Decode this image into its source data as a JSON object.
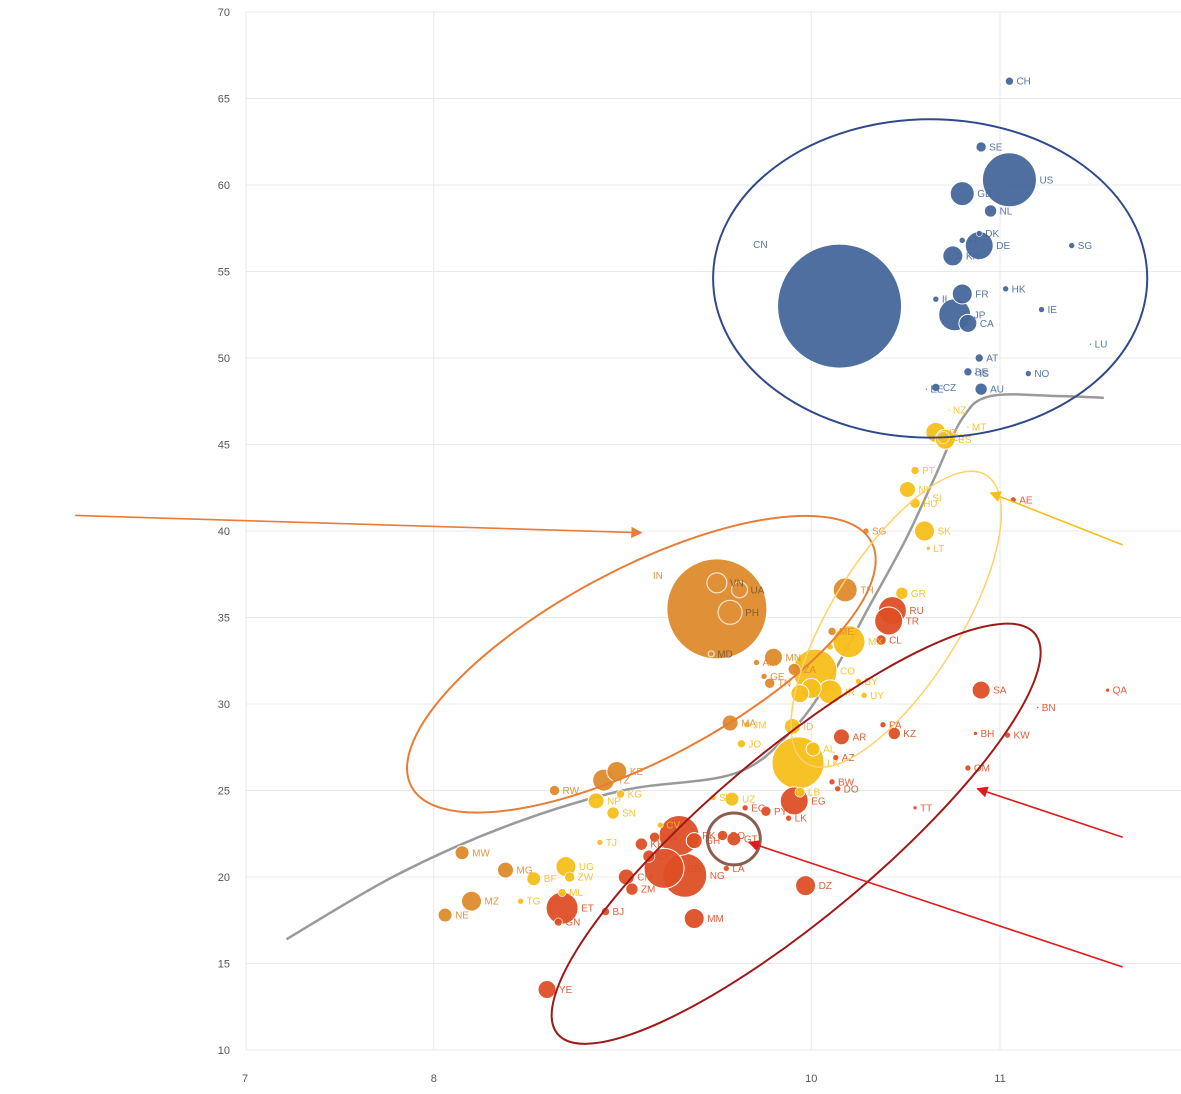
{
  "chart_data": {
    "type": "scatter",
    "title": "",
    "xlabel": "",
    "ylabel": "",
    "xlim": [
      7,
      11.7
    ],
    "ylim": [
      10,
      70
    ],
    "x_ticks": [
      7,
      8,
      10,
      11
    ],
    "x_tick_labels": [
      "7",
      "8",
      "10",
      "11"
    ],
    "y_ticks": [
      10,
      15,
      20,
      25,
      30,
      35,
      40,
      45,
      50,
      55,
      60,
      65,
      70
    ],
    "y_tick_labels": [
      "10",
      "15",
      "20",
      "25",
      "30",
      "35",
      "40",
      "45",
      "50",
      "55",
      "60",
      "65",
      "70"
    ],
    "grid": true,
    "colors": {
      "blue": "#44679a",
      "gold": "#f6bf1a",
      "orange": "#de8a2b",
      "red": "#dd4f26",
      "trend": "#9a9a9a"
    },
    "points": [
      {
        "label": "CH",
        "x": 11.05,
        "y": 66.0,
        "size": 4,
        "group": "blue"
      },
      {
        "label": "SE",
        "x": 10.9,
        "y": 62.2,
        "size": 5,
        "group": "blue"
      },
      {
        "label": "US",
        "x": 11.05,
        "y": 60.3,
        "size": 27,
        "group": "blue"
      },
      {
        "label": "GB",
        "x": 10.8,
        "y": 59.5,
        "size": 12,
        "group": "blue"
      },
      {
        "label": "NL",
        "x": 10.95,
        "y": 58.5,
        "size": 6,
        "group": "blue"
      },
      {
        "label": "FI",
        "x": 10.8,
        "y": 56.8,
        "size": 3,
        "group": "blue"
      },
      {
        "label": "DK",
        "x": 10.89,
        "y": 57.2,
        "size": 3,
        "group": "blue"
      },
      {
        "label": "KR",
        "x": 10.75,
        "y": 55.9,
        "size": 10,
        "group": "blue"
      },
      {
        "label": "DE",
        "x": 10.89,
        "y": 56.5,
        "size": 14,
        "group": "blue"
      },
      {
        "label": "SG",
        "x": 11.38,
        "y": 56.5,
        "size": 3,
        "group": "blue"
      },
      {
        "label": "CN",
        "x": 10.15,
        "y": 53.0,
        "size": 62,
        "group": "blue"
      },
      {
        "label": "FR",
        "x": 10.8,
        "y": 53.7,
        "size": 10,
        "group": "blue"
      },
      {
        "label": "HK",
        "x": 11.03,
        "y": 54.0,
        "size": 3,
        "group": "blue"
      },
      {
        "label": "IL",
        "x": 10.66,
        "y": 53.4,
        "size": 3,
        "group": "blue"
      },
      {
        "label": "IE",
        "x": 11.22,
        "y": 52.8,
        "size": 3,
        "group": "blue"
      },
      {
        "label": "JP",
        "x": 10.76,
        "y": 52.5,
        "size": 16,
        "group": "blue"
      },
      {
        "label": "CA",
        "x": 10.83,
        "y": 52.0,
        "size": 9,
        "group": "blue"
      },
      {
        "label": "LU",
        "x": 11.48,
        "y": 50.8,
        "size": 1,
        "group": "blue"
      },
      {
        "label": "AT",
        "x": 10.89,
        "y": 50.0,
        "size": 4,
        "group": "blue"
      },
      {
        "label": "BE",
        "x": 10.83,
        "y": 49.2,
        "size": 4,
        "group": "blue"
      },
      {
        "label": "IS",
        "x": 10.87,
        "y": 49.1,
        "size": 1,
        "group": "blue"
      },
      {
        "label": "NO",
        "x": 11.15,
        "y": 49.1,
        "size": 3,
        "group": "blue"
      },
      {
        "label": "EE",
        "x": 10.61,
        "y": 48.2,
        "size": 1,
        "group": "blue"
      },
      {
        "label": "CZ",
        "x": 10.66,
        "y": 48.3,
        "size": 4,
        "group": "blue"
      },
      {
        "label": "AU",
        "x": 10.9,
        "y": 48.2,
        "size": 6,
        "group": "blue"
      },
      {
        "label": "NZ",
        "x": 10.73,
        "y": 47.0,
        "size": 1,
        "group": "gold"
      },
      {
        "label": "MT",
        "x": 10.83,
        "y": 46.0,
        "size": 1,
        "group": "gold"
      },
      {
        "label": "IT",
        "x": 10.66,
        "y": 45.7,
        "size": 10,
        "group": "gold"
      },
      {
        "label": "CY",
        "x": 10.7,
        "y": 45.4,
        "size": 6,
        "group": "gold"
      },
      {
        "label": "ES",
        "x": 10.71,
        "y": 45.3,
        "size": 10,
        "group": "gold"
      },
      {
        "label": "PT",
        "x": 10.55,
        "y": 43.5,
        "size": 4,
        "group": "gold"
      },
      {
        "label": "SI",
        "x": 10.62,
        "y": 41.9,
        "size": 1,
        "group": "gold"
      },
      {
        "label": "NY",
        "x": 10.51,
        "y": 42.4,
        "size": 8,
        "group": "gold"
      },
      {
        "label": "HU",
        "x": 10.55,
        "y": 41.6,
        "size": 5,
        "group": "gold"
      },
      {
        "label": "SK",
        "x": 10.6,
        "y": 40.0,
        "size": 10,
        "group": "gold"
      },
      {
        "label": "LT",
        "x": 10.62,
        "y": 39.0,
        "size": 2,
        "group": "gold"
      },
      {
        "label": "AE",
        "x": 11.07,
        "y": 41.8,
        "size": 3,
        "group": "red"
      },
      {
        "label": "SG",
        "x": 10.29,
        "y": 40.0,
        "size": 3,
        "group": "orange"
      },
      {
        "label": "TH",
        "x": 10.18,
        "y": 36.6,
        "size": 12,
        "group": "orange"
      },
      {
        "label": "GR",
        "x": 10.48,
        "y": 36.4,
        "size": 6,
        "group": "gold"
      },
      {
        "label": "RU",
        "x": 10.43,
        "y": 35.4,
        "size": 14,
        "group": "red"
      },
      {
        "label": "TR",
        "x": 10.41,
        "y": 34.8,
        "size": 14,
        "group": "red"
      },
      {
        "label": "CL",
        "x": 10.37,
        "y": 33.7,
        "size": 5,
        "group": "red"
      },
      {
        "label": "MX",
        "x": 10.2,
        "y": 33.6,
        "size": 16,
        "group": "gold"
      },
      {
        "label": "ME",
        "x": 10.11,
        "y": 34.2,
        "size": 4,
        "group": "orange"
      },
      {
        "label": "CR",
        "x": 10.1,
        "y": 33.3,
        "size": 3,
        "group": "gold"
      },
      {
        "label": "MN",
        "x": 9.8,
        "y": 32.7,
        "size": 9,
        "group": "orange"
      },
      {
        "label": "CO",
        "x": 10.02,
        "y": 31.9,
        "size": 22,
        "group": "gold"
      },
      {
        "label": "ZA",
        "x": 9.91,
        "y": 32.0,
        "size": 6,
        "group": "orange"
      },
      {
        "label": "AM",
        "x": 9.71,
        "y": 32.4,
        "size": 3,
        "group": "orange"
      },
      {
        "label": "GE",
        "x": 9.75,
        "y": 31.6,
        "size": 3,
        "group": "orange"
      },
      {
        "label": "TN",
        "x": 9.78,
        "y": 31.2,
        "size": 5,
        "group": "orange"
      },
      {
        "label": "BY",
        "x": 10.25,
        "y": 31.3,
        "size": 3,
        "group": "gold"
      },
      {
        "label": "UY",
        "x": 10.28,
        "y": 30.5,
        "size": 3,
        "group": "gold"
      },
      {
        "label": "IR",
        "x": 10.1,
        "y": 30.7,
        "size": 12,
        "group": "gold"
      },
      {
        "label": "BA",
        "x": 9.94,
        "y": 30.6,
        "size": 9,
        "group": "gold"
      },
      {
        "label": "PE",
        "x": 10.0,
        "y": 30.9,
        "size": 10,
        "group": "gold"
      },
      {
        "label": "IN",
        "x": 9.5,
        "y": 35.5,
        "size": 50,
        "group": "orange"
      },
      {
        "label": "VN",
        "x": 9.5,
        "y": 37.0,
        "size": 10,
        "group": "orange",
        "hollow": true
      },
      {
        "label": "UA",
        "x": 9.62,
        "y": 36.6,
        "size": 8,
        "group": "orange",
        "hollow": true
      },
      {
        "label": "PH",
        "x": 9.57,
        "y": 35.3,
        "size": 12,
        "group": "orange",
        "hollow": true
      },
      {
        "label": "MD",
        "x": 9.47,
        "y": 32.9,
        "size": 3,
        "group": "orange",
        "hollow": true
      },
      {
        "label": "MA",
        "x": 9.57,
        "y": 28.9,
        "size": 8,
        "group": "orange"
      },
      {
        "label": "JM",
        "x": 9.66,
        "y": 28.8,
        "size": 3,
        "group": "gold"
      },
      {
        "label": "ID",
        "x": 9.9,
        "y": 28.7,
        "size": 8,
        "group": "gold"
      },
      {
        "label": "AR",
        "x": 10.16,
        "y": 28.1,
        "size": 8,
        "group": "red"
      },
      {
        "label": "PA",
        "x": 10.38,
        "y": 28.8,
        "size": 3,
        "group": "red"
      },
      {
        "label": "KZ",
        "x": 10.44,
        "y": 28.3,
        "size": 6,
        "group": "red"
      },
      {
        "label": "JO",
        "x": 9.63,
        "y": 27.7,
        "size": 4,
        "group": "gold"
      },
      {
        "label": "AL",
        "x": 10.01,
        "y": 27.4,
        "size": 7,
        "group": "gold"
      },
      {
        "label": "AZ",
        "x": 10.13,
        "y": 26.9,
        "size": 3,
        "group": "red"
      },
      {
        "label": "LK",
        "x": 9.93,
        "y": 26.6,
        "size": 26,
        "group": "gold"
      },
      {
        "label": "BW",
        "x": 10.11,
        "y": 25.5,
        "size": 3,
        "group": "red"
      },
      {
        "label": "DO",
        "x": 10.14,
        "y": 25.1,
        "size": 3,
        "group": "red"
      },
      {
        "label": "LB",
        "x": 9.94,
        "y": 24.9,
        "size": 5,
        "group": "gold"
      },
      {
        "label": "EG",
        "x": 9.91,
        "y": 24.4,
        "size": 14,
        "group": "red"
      },
      {
        "label": "SV",
        "x": 9.48,
        "y": 24.6,
        "size": 3,
        "group": "gold"
      },
      {
        "label": "UZ",
        "x": 9.58,
        "y": 24.5,
        "size": 7,
        "group": "gold"
      },
      {
        "label": "EC",
        "x": 9.65,
        "y": 24.0,
        "size": 3,
        "group": "red"
      },
      {
        "label": "PY",
        "x": 9.76,
        "y": 23.8,
        "size": 5,
        "group": "red"
      },
      {
        "label": "LK",
        "x": 9.88,
        "y": 23.4,
        "size": 3,
        "group": "red"
      },
      {
        "label": "SA",
        "x": 10.9,
        "y": 30.8,
        "size": 9,
        "group": "red"
      },
      {
        "label": "QA",
        "x": 11.57,
        "y": 30.8,
        "size": 2,
        "group": "red"
      },
      {
        "label": "KW",
        "x": 11.04,
        "y": 28.2,
        "size": 3,
        "group": "red"
      },
      {
        "label": "BN",
        "x": 11.2,
        "y": 29.8,
        "size": 1,
        "group": "red"
      },
      {
        "label": "BH",
        "x": 10.87,
        "y": 28.3,
        "size": 2,
        "group": "red"
      },
      {
        "label": "OM",
        "x": 10.83,
        "y": 26.3,
        "size": 3,
        "group": "red"
      },
      {
        "label": "TT",
        "x": 10.55,
        "y": 24.0,
        "size": 2,
        "group": "red"
      },
      {
        "label": "DZ",
        "x": 9.97,
        "y": 19.5,
        "size": 10,
        "group": "red"
      },
      {
        "label": "TZ",
        "x": 8.9,
        "y": 25.6,
        "size": 11,
        "group": "orange"
      },
      {
        "label": "KE",
        "x": 8.97,
        "y": 26.1,
        "size": 10,
        "group": "orange"
      },
      {
        "label": "RW",
        "x": 8.64,
        "y": 25.0,
        "size": 5,
        "group": "orange"
      },
      {
        "label": "NP",
        "x": 8.86,
        "y": 24.4,
        "size": 8,
        "group": "gold"
      },
      {
        "label": "KG",
        "x": 8.99,
        "y": 24.8,
        "size": 4,
        "group": "gold"
      },
      {
        "label": "SN",
        "x": 8.95,
        "y": 23.7,
        "size": 6,
        "group": "gold"
      },
      {
        "label": "CV",
        "x": 9.2,
        "y": 23.0,
        "size": 3,
        "group": "gold"
      },
      {
        "label": "PK",
        "x": 9.3,
        "y": 22.4,
        "size": 20,
        "group": "red"
      },
      {
        "label": "KH",
        "x": 9.1,
        "y": 21.9,
        "size": 6,
        "group": "red"
      },
      {
        "label": "HN",
        "x": 9.17,
        "y": 22.3,
        "size": 5,
        "group": "red"
      },
      {
        "label": "GH",
        "x": 9.38,
        "y": 22.1,
        "size": 8,
        "group": "red"
      },
      {
        "label": "BO",
        "x": 9.53,
        "y": 22.4,
        "size": 5,
        "group": "red"
      },
      {
        "label": "GT",
        "x": 9.59,
        "y": 22.2,
        "size": 7,
        "group": "red"
      },
      {
        "label": "LA",
        "x": 9.55,
        "y": 20.5,
        "size": 3,
        "group": "red"
      },
      {
        "label": "CI",
        "x": 9.14,
        "y": 21.2,
        "size": 6,
        "group": "red"
      },
      {
        "label": "BD",
        "x": 9.22,
        "y": 20.5,
        "size": 20,
        "group": "red"
      },
      {
        "label": "NG",
        "x": 9.33,
        "y": 20.1,
        "size": 22,
        "group": "red"
      },
      {
        "label": "CM",
        "x": 9.02,
        "y": 20.0,
        "size": 8,
        "group": "red"
      },
      {
        "label": "ZM",
        "x": 9.05,
        "y": 19.3,
        "size": 6,
        "group": "red"
      },
      {
        "label": "MM",
        "x": 9.38,
        "y": 17.6,
        "size": 10,
        "group": "red"
      },
      {
        "label": "MW",
        "x": 8.15,
        "y": 21.4,
        "size": 7,
        "group": "orange"
      },
      {
        "label": "MG",
        "x": 8.38,
        "y": 20.4,
        "size": 8,
        "group": "orange"
      },
      {
        "label": "BF",
        "x": 8.53,
        "y": 19.9,
        "size": 7,
        "group": "gold"
      },
      {
        "label": "UG",
        "x": 8.7,
        "y": 20.6,
        "size": 10,
        "group": "gold"
      },
      {
        "label": "ZW",
        "x": 8.72,
        "y": 20.0,
        "size": 5,
        "group": "gold"
      },
      {
        "label": "MZ",
        "x": 8.2,
        "y": 18.6,
        "size": 10,
        "group": "orange"
      },
      {
        "label": "NE",
        "x": 8.06,
        "y": 17.8,
        "size": 7,
        "group": "orange"
      },
      {
        "label": "ML",
        "x": 8.68,
        "y": 19.1,
        "size": 4,
        "group": "gold"
      },
      {
        "label": "ET",
        "x": 8.68,
        "y": 18.2,
        "size": 16,
        "group": "red"
      },
      {
        "label": "TG",
        "x": 8.46,
        "y": 18.6,
        "size": 3,
        "group": "gold"
      },
      {
        "label": "GN",
        "x": 8.66,
        "y": 17.4,
        "size": 4,
        "group": "red"
      },
      {
        "label": "BJ",
        "x": 8.91,
        "y": 18.0,
        "size": 4,
        "group": "red"
      },
      {
        "label": "TJ",
        "x": 8.88,
        "y": 22.0,
        "size": 3,
        "group": "gold"
      },
      {
        "label": "YE",
        "x": 8.6,
        "y": 13.5,
        "size": 9,
        "group": "red"
      }
    ],
    "trend_line": [
      [
        7.22,
        16.4
      ],
      [
        7.8,
        20.1
      ],
      [
        8.4,
        23.0
      ],
      [
        9.0,
        25.0
      ],
      [
        9.6,
        26.0
      ],
      [
        9.9,
        28.5
      ],
      [
        10.1,
        31.5
      ],
      [
        10.3,
        35.5
      ],
      [
        10.5,
        39.5
      ],
      [
        10.65,
        43.0
      ],
      [
        10.8,
        46.5
      ],
      [
        10.95,
        47.8
      ],
      [
        11.3,
        47.8
      ],
      [
        11.55,
        47.7
      ]
    ],
    "annotations": {
      "ellipses": [
        {
          "cx": 10.63,
          "cy": 54.6,
          "rx": 1.15,
          "ry": 9.2,
          "rotate": 0,
          "color": "#2f4a8a",
          "width": 2
        },
        {
          "cx": 9.1,
          "cy": 32.3,
          "rx": 1.38,
          "ry": 5.5,
          "rotate": -28,
          "color": "#e77d36",
          "width": 2
        },
        {
          "cx": 10.45,
          "cy": 34.9,
          "rx": 0.9,
          "ry": 3.7,
          "rotate": -58,
          "color": "#ffd166",
          "width": 1.5
        },
        {
          "cx": 9.92,
          "cy": 22.5,
          "rx": 1.65,
          "ry": 4.8,
          "rotate": -40,
          "color": "#a01818",
          "width": 2
        },
        {
          "cx": 9.59,
          "cy": 22.2,
          "rx": 0.14,
          "ry": 1.5,
          "rotate": 0,
          "color": "#8b5e50",
          "width": 3
        }
      ],
      "arrows": [
        {
          "from": [
            6.1,
            40.9
          ],
          "to": [
            9.1,
            39.9
          ],
          "color": "#e77d36"
        },
        {
          "from": [
            11.65,
            39.2
          ],
          "to": [
            10.95,
            42.2
          ],
          "color": "#f6bf1a"
        },
        {
          "from": [
            11.65,
            22.3
          ],
          "to": [
            10.88,
            25.1
          ],
          "color": "#e01a1a"
        },
        {
          "from": [
            11.65,
            14.8
          ],
          "to": [
            9.67,
            22.0
          ],
          "color": "#e01a1a"
        }
      ]
    }
  }
}
